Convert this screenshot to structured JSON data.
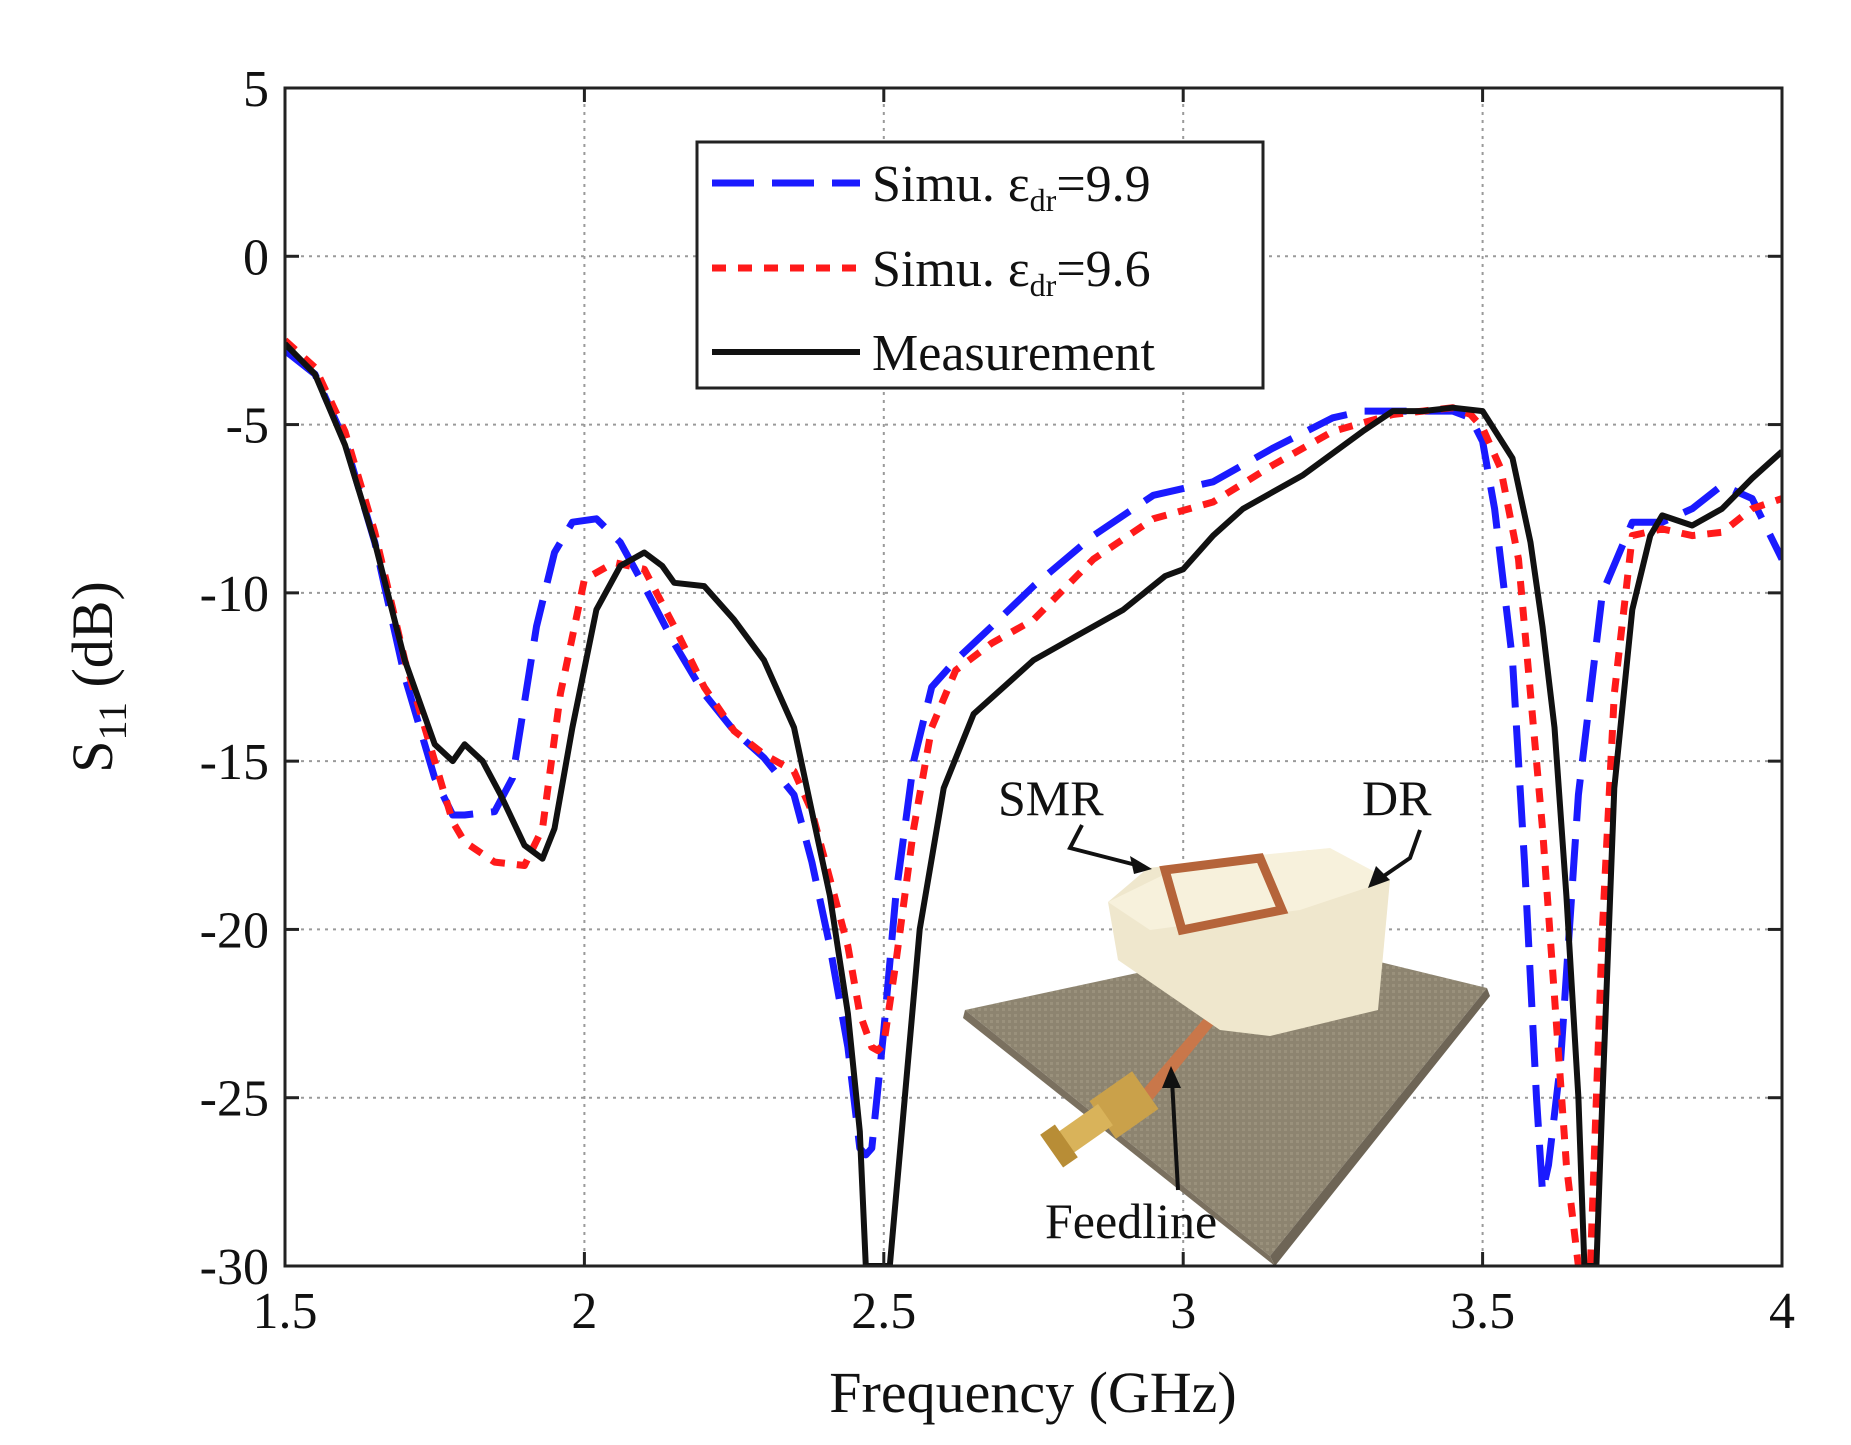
{
  "chart_data": {
    "type": "line",
    "title": "",
    "xlabel": "Frequency (GHz)",
    "ylabel_main": "S",
    "ylabel_sub": "11",
    "ylabel_unit": " (dB)",
    "xlim": [
      1.5,
      4
    ],
    "ylim": [
      -30,
      5
    ],
    "xticks": [
      1.5,
      2,
      2.5,
      3,
      3.5,
      4
    ],
    "xtick_labels": [
      "1.5",
      "2",
      "2.5",
      "3",
      "3.5",
      "4"
    ],
    "yticks": [
      5,
      0,
      -5,
      -10,
      -15,
      -20,
      -25,
      -30
    ],
    "ytick_labels": [
      "5",
      "0",
      "-5",
      "-10",
      "-15",
      "-20",
      "-25",
      "-30"
    ],
    "grid": true,
    "legend_position": "top-center",
    "series": [
      {
        "name": "Simu. εdr=9.9",
        "label_main": "Simu. ε",
        "label_sub": "dr",
        "label_tail": "=9.9",
        "color": "#1a1aff",
        "dash": "dashed",
        "x": [
          1.5,
          1.55,
          1.6,
          1.65,
          1.7,
          1.75,
          1.78,
          1.8,
          1.85,
          1.88,
          1.92,
          1.95,
          1.98,
          2.02,
          2.06,
          2.1,
          2.15,
          2.2,
          2.25,
          2.3,
          2.35,
          2.38,
          2.41,
          2.44,
          2.46,
          2.47,
          2.48,
          2.5,
          2.52,
          2.55,
          2.58,
          2.62,
          2.68,
          2.75,
          2.85,
          2.95,
          3.05,
          3.15,
          3.25,
          3.3,
          3.35,
          3.4,
          3.45,
          3.48,
          3.5,
          3.52,
          3.55,
          3.57,
          3.59,
          3.6,
          3.61,
          3.63,
          3.66,
          3.7,
          3.75,
          3.8,
          3.85,
          3.9,
          3.95,
          4.0
        ],
        "values": [
          -2.8,
          -3.5,
          -5.5,
          -8.5,
          -12.5,
          -15.5,
          -16.6,
          -16.6,
          -16.5,
          -15.5,
          -11,
          -8.8,
          -7.9,
          -7.8,
          -8.5,
          -9.8,
          -11.5,
          -13,
          -14.1,
          -14.9,
          -16,
          -18,
          -20.5,
          -23.5,
          -26.5,
          -26.7,
          -26.5,
          -23,
          -19,
          -15,
          -12.8,
          -12,
          -11,
          -9.8,
          -8.3,
          -7.1,
          -6.7,
          -5.7,
          -4.8,
          -4.6,
          -4.6,
          -4.6,
          -4.6,
          -4.8,
          -5.5,
          -7.5,
          -12,
          -18,
          -25,
          -27.8,
          -27,
          -24,
          -16,
          -10,
          -7.9,
          -7.9,
          -7.5,
          -6.8,
          -7.2,
          -9
        ]
      },
      {
        "name": "Simu. εdr=9.6",
        "label_main": "Simu. ε",
        "label_sub": "dr",
        "label_tail": "=9.6",
        "color": "#ff1a1a",
        "dash": "dotted",
        "x": [
          1.5,
          1.55,
          1.6,
          1.65,
          1.7,
          1.75,
          1.78,
          1.8,
          1.85,
          1.9,
          1.93,
          1.96,
          2.0,
          2.05,
          2.1,
          2.15,
          2.2,
          2.25,
          2.3,
          2.35,
          2.38,
          2.41,
          2.44,
          2.46,
          2.48,
          2.49,
          2.5,
          2.52,
          2.55,
          2.58,
          2.62,
          2.68,
          2.75,
          2.85,
          2.95,
          3.05,
          3.15,
          3.25,
          3.35,
          3.4,
          3.45,
          3.48,
          3.5,
          3.53,
          3.56,
          3.6,
          3.62,
          3.64,
          3.66,
          3.68,
          3.7,
          3.72,
          3.75,
          3.8,
          3.85,
          3.9,
          3.95,
          4.0
        ],
        "values": [
          -2.5,
          -3.3,
          -5.2,
          -8.2,
          -12,
          -15,
          -16.8,
          -17.4,
          -18,
          -18.1,
          -17,
          -13,
          -9.6,
          -9.1,
          -9.3,
          -11,
          -12.8,
          -14.1,
          -14.8,
          -15.3,
          -16.5,
          -18.5,
          -20.5,
          -22.5,
          -23.5,
          -23.6,
          -23.4,
          -21,
          -17,
          -14,
          -12.3,
          -11.5,
          -10.8,
          -9,
          -7.8,
          -7.3,
          -6.2,
          -5.2,
          -4.7,
          -4.6,
          -4.5,
          -4.7,
          -5.1,
          -6.3,
          -9,
          -17,
          -22,
          -27,
          -30,
          -30,
          -20,
          -13,
          -8.3,
          -8.1,
          -8.3,
          -8.2,
          -7.5,
          -7.2
        ]
      },
      {
        "name": "Measurement",
        "label_main": "Measurement",
        "label_sub": "",
        "label_tail": "",
        "color": "#111111",
        "dash": "solid",
        "x": [
          1.5,
          1.55,
          1.6,
          1.65,
          1.7,
          1.75,
          1.78,
          1.8,
          1.83,
          1.86,
          1.9,
          1.93,
          1.95,
          1.98,
          2.02,
          2.06,
          2.1,
          2.13,
          2.15,
          2.2,
          2.25,
          2.3,
          2.35,
          2.38,
          2.41,
          2.44,
          2.46,
          2.47,
          2.49,
          2.51,
          2.53,
          2.56,
          2.6,
          2.65,
          2.7,
          2.75,
          2.8,
          2.9,
          2.97,
          3.0,
          3.05,
          3.1,
          3.2,
          3.3,
          3.35,
          3.4,
          3.45,
          3.5,
          3.55,
          3.58,
          3.6,
          3.62,
          3.64,
          3.66,
          3.67,
          3.68,
          3.69,
          3.7,
          3.72,
          3.75,
          3.78,
          3.8,
          3.85,
          3.9,
          3.95,
          4.0
        ],
        "values": [
          -2.6,
          -3.5,
          -5.6,
          -8.5,
          -12,
          -14.5,
          -15,
          -14.5,
          -15,
          -16,
          -17.5,
          -17.9,
          -17,
          -14,
          -10.5,
          -9.2,
          -8.8,
          -9.2,
          -9.7,
          -9.8,
          -10.8,
          -12,
          -14,
          -16.5,
          -19,
          -22.5,
          -26,
          -30,
          -30,
          -30,
          -26,
          -20,
          -15.8,
          -13.6,
          -12.8,
          -12,
          -11.5,
          -10.5,
          -9.5,
          -9.3,
          -8.3,
          -7.5,
          -6.5,
          -5.2,
          -4.6,
          -4.6,
          -4.5,
          -4.6,
          -6,
          -8.5,
          -11,
          -14,
          -19,
          -25,
          -30,
          -30,
          -30,
          -25,
          -15.8,
          -10.5,
          -8.3,
          -7.7,
          -8,
          -7.5,
          -6.6,
          -5.8
        ]
      }
    ],
    "inset": {
      "description_labels": {
        "smr": "SMR",
        "dr": "DR",
        "feedline": "Feedline"
      }
    }
  }
}
